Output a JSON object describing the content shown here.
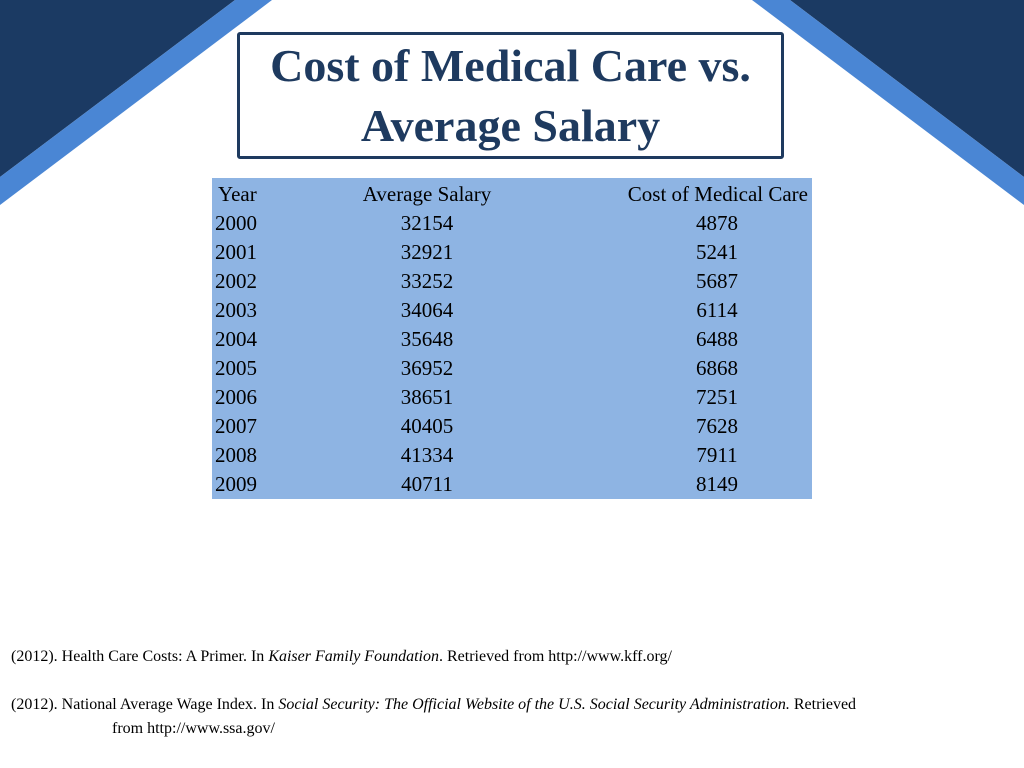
{
  "slide": {
    "title": "Cost of Medical Care vs. Average Salary",
    "colors": {
      "dark_navy": "#1b3a63",
      "accent_blue": "#4a86d4",
      "table_fill": "#8eb4e3",
      "title_text": "#1e3a5f"
    }
  },
  "table": {
    "headers": [
      "Year",
      "Average Salary",
      "Cost of Medical Care"
    ],
    "rows": [
      [
        "2000",
        "32154",
        "4878"
      ],
      [
        "2001",
        "32921",
        "5241"
      ],
      [
        "2002",
        "33252",
        "5687"
      ],
      [
        "2003",
        "34064",
        "6114"
      ],
      [
        "2004",
        "35648",
        "6488"
      ],
      [
        "2005",
        "36952",
        "6868"
      ],
      [
        "2006",
        "38651",
        "7251"
      ],
      [
        "2007",
        "40405",
        "7628"
      ],
      [
        "2008",
        "41334",
        "7911"
      ],
      [
        "2009",
        "40711",
        "8149"
      ]
    ]
  },
  "references": [
    {
      "before": "(2012). Health Care Costs: A Primer. In ",
      "italic": "Kaiser Family Foundation",
      "after": ". Retrieved from http://www.kff.org/"
    },
    {
      "before": "(2012). National Average Wage Index. In ",
      "italic": "Social Security: The Official Website of the U.S. Social Security Administration.",
      "after": " Retrieved from http://www.ssa.gov/"
    }
  ]
}
